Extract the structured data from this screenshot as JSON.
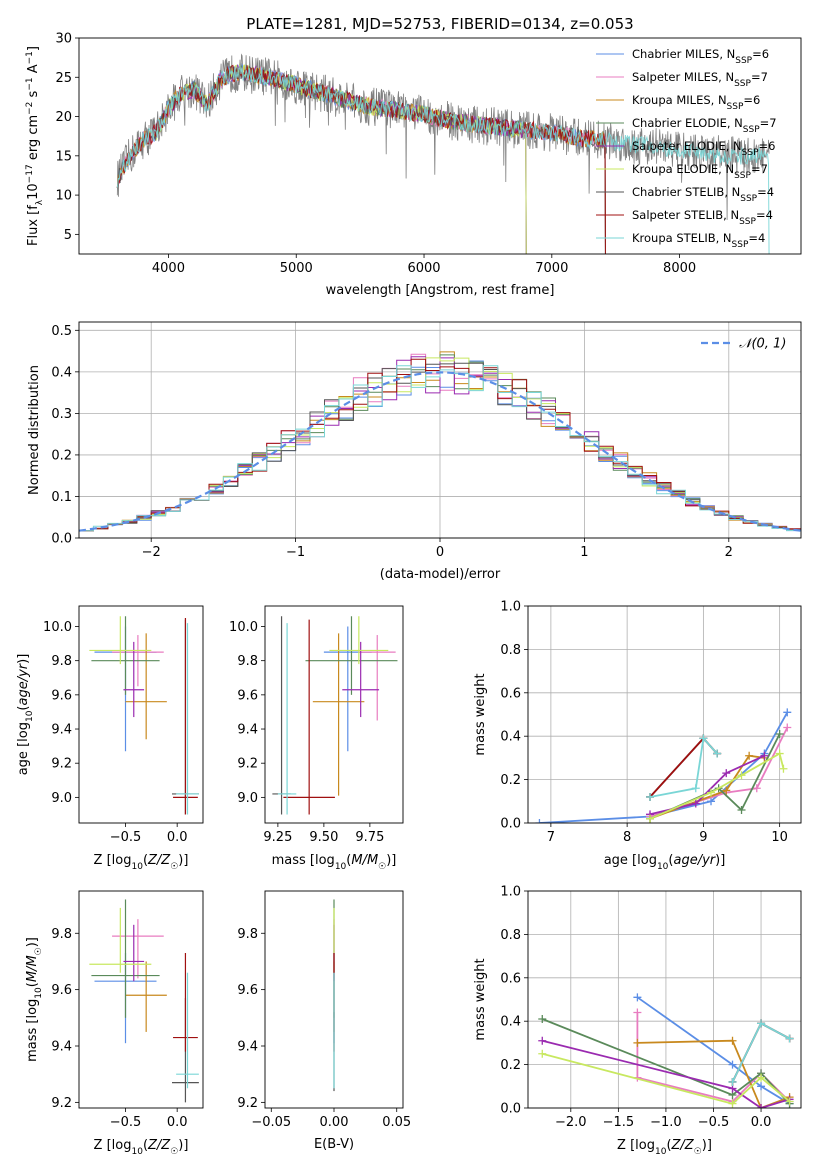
{
  "figure": {
    "title": "PLATE=1281, MJD=52753, FIBERID=0134, z=0.053"
  },
  "colors": {
    "Chabrier MILES": "#5b8ee6",
    "Salpeter MILES": "#e87cc0",
    "Kroupa MILES": "#c8891e",
    "Chabrier ELODIE": "#5a8a5a",
    "Salpeter ELODIE": "#9a2ab0",
    "Kroupa ELODIE": "#c8e860",
    "Chabrier STELIB": "#555555",
    "Salpeter STELIB": "#a01010",
    "Kroupa STELIB": "#7ad6d6",
    "data": "#808080",
    "orange": "#f07d1e",
    "normal": "#5b8ee6",
    "grid": "#b0b0b0"
  },
  "chart_data": [
    {
      "id": "spectrum",
      "type": "line",
      "xlabel": "wavelength [Angstrom, rest frame]",
      "ylabel": "Flux [f_λ10^-17 erg cm^-2 s^-1 A^-1]",
      "xlim": [
        3300,
        8950
      ],
      "ylim": [
        2.5,
        30
      ],
      "xticks": [
        4000,
        5000,
        6000,
        7000,
        8000
      ],
      "yticks": [
        5,
        10,
        15,
        20,
        25,
        30
      ],
      "grid": false,
      "legend_position": "top-right",
      "continuum": {
        "x": [
          3600,
          3700,
          3800,
          3900,
          4000,
          4100,
          4200,
          4300,
          4400,
          4500,
          4600,
          4800,
          5000,
          5200,
          5400,
          5600,
          5800,
          6000,
          6200,
          6400,
          6600,
          6800,
          7000,
          7200,
          7400,
          7600,
          7800,
          8000,
          8200,
          8400
        ],
        "y": [
          12,
          15,
          17,
          18,
          21,
          23,
          23.5,
          21.5,
          24.5,
          25.5,
          25.5,
          25,
          24,
          23,
          22,
          21.2,
          20.8,
          20.3,
          19.5,
          19,
          18.6,
          18.3,
          18,
          17.3,
          17,
          16.5,
          16.2,
          15.8,
          15.3,
          15
        ]
      },
      "series": [
        {
          "name": "Chabrier MILES",
          "nssp": "6",
          "xmin": 3600,
          "xmax": 7420
        },
        {
          "name": "Salpeter MILES",
          "nssp": "7",
          "xmin": 3600,
          "xmax": 7420
        },
        {
          "name": "Kroupa MILES",
          "nssp": "6",
          "xmin": 3600,
          "xmax": 7420
        },
        {
          "name": "Chabrier ELODIE",
          "nssp": "7",
          "xmin": 3900,
          "xmax": 6800
        },
        {
          "name": "Salpeter ELODIE",
          "nssp": "6",
          "xmin": 3900,
          "xmax": 6800
        },
        {
          "name": "Kroupa ELODIE",
          "nssp": "7",
          "xmin": 3900,
          "xmax": 6800
        },
        {
          "name": "Chabrier STELIB",
          "nssp": "4",
          "xmin": 3600,
          "xmax": 7420
        },
        {
          "name": "Salpeter STELIB",
          "nssp": "4",
          "xmin": 3600,
          "xmax": 7420
        },
        {
          "name": "Kroupa STELIB",
          "nssp": "4",
          "xmin": 3600,
          "xmax": 8700
        }
      ]
    },
    {
      "id": "residuals",
      "type": "histogram",
      "xlabel": "(data-model)/error",
      "ylabel": "Normed distribution",
      "xlim": [
        -2.5,
        2.5
      ],
      "ylim": [
        0,
        0.52
      ],
      "xticks": [
        -2,
        -1,
        0,
        1,
        2
      ],
      "yticks": [
        0.0,
        0.1,
        0.2,
        0.3,
        0.4,
        0.5
      ],
      "grid": true,
      "legend_position": "top-right",
      "legend_label": "𝒩(0, 1)",
      "bin_width": 0.1
    },
    {
      "id": "age-vs-Z",
      "type": "errorbar",
      "xlabel": "Z [log10(Z/Z☉)]",
      "ylabel": "age  [log10(age/yr)]",
      "xlim": [
        -0.95,
        0.25
      ],
      "ylim": [
        8.85,
        10.12
      ],
      "xticks": [
        -0.5,
        0.0
      ],
      "yticks": [
        9.0,
        9.2,
        9.4,
        9.6,
        9.8,
        10.0
      ],
      "grid": false,
      "points": [
        {
          "series": "Chabrier MILES",
          "x": -0.5,
          "y": 9.85,
          "xerr": 0.3,
          "yerr": [
            0.58,
            0.15
          ]
        },
        {
          "series": "Salpeter MILES",
          "x": -0.38,
          "y": 9.85,
          "xerr": 0.25,
          "yerr": [
            0.2,
            0.1
          ]
        },
        {
          "series": "Kroupa MILES",
          "x": -0.3,
          "y": 9.56,
          "xerr": 0.2,
          "yerr": [
            0.22,
            0.4
          ]
        },
        {
          "series": "Chabrier ELODIE",
          "x": -0.5,
          "y": 9.8,
          "xerr": 0.33,
          "yerr": [
            0.2,
            0.26
          ]
        },
        {
          "series": "Salpeter ELODIE",
          "x": -0.42,
          "y": 9.63,
          "xerr": 0.1,
          "yerr": [
            0.16,
            0.28
          ]
        },
        {
          "series": "Kroupa ELODIE",
          "x": -0.55,
          "y": 9.86,
          "xerr": 0.3,
          "yerr": [
            0.08,
            0.2
          ]
        },
        {
          "series": "Chabrier STELIB",
          "x": 0.08,
          "y": 9.02,
          "xerr": 0.13,
          "yerr": [
            0.12,
            1.02
          ]
        },
        {
          "series": "Salpeter STELIB",
          "x": 0.08,
          "y": 9.0,
          "xerr": 0.12,
          "yerr": [
            0.1,
            1.05
          ]
        },
        {
          "series": "Kroupa STELIB",
          "x": 0.1,
          "y": 9.02,
          "xerr": 0.11,
          "yerr": [
            0.12,
            1.0
          ]
        }
      ]
    },
    {
      "id": "age-vs-mass",
      "type": "errorbar",
      "xlabel": "mass [log10(M/M☉)]",
      "ylabel": "",
      "xlim": [
        9.18,
        9.93
      ],
      "ylim": [
        8.85,
        10.12
      ],
      "xticks": [
        9.25,
        9.5,
        9.75
      ],
      "yticks": [
        9.0,
        9.2,
        9.4,
        9.6,
        9.8,
        10.0
      ],
      "grid": false,
      "points": [
        {
          "series": "Chabrier MILES",
          "x": 9.63,
          "y": 9.85,
          "xerr": 0.13,
          "yerr": [
            0.58,
            0.15
          ]
        },
        {
          "series": "Salpeter MILES",
          "x": 9.79,
          "y": 9.85,
          "xerr": 0.1,
          "yerr": [
            0.4,
            0.1
          ]
        },
        {
          "series": "Kroupa MILES",
          "x": 9.58,
          "y": 9.56,
          "xerr": 0.14,
          "yerr": [
            0.55,
            0.4
          ]
        },
        {
          "series": "Chabrier ELODIE",
          "x": 9.65,
          "y": 9.8,
          "xerr": 0.25,
          "yerr": [
            0.2,
            0.26
          ]
        },
        {
          "series": "Salpeter ELODIE",
          "x": 9.7,
          "y": 9.63,
          "xerr": 0.1,
          "yerr": [
            0.16,
            0.28
          ]
        },
        {
          "series": "Kroupa ELODIE",
          "x": 9.69,
          "y": 9.86,
          "xerr": 0.16,
          "yerr": [
            0.08,
            0.2
          ]
        },
        {
          "series": "Chabrier STELIB",
          "x": 9.27,
          "y": 9.02,
          "xerr": 0.05,
          "yerr": [
            0.12,
            1.04
          ]
        },
        {
          "series": "Salpeter STELIB",
          "x": 9.42,
          "y": 9.0,
          "xerr": 0.14,
          "yerr": [
            0.1,
            1.04
          ]
        },
        {
          "series": "Kroupa STELIB",
          "x": 9.3,
          "y": 9.02,
          "xerr": 0.05,
          "yerr": [
            0.12,
            1.0
          ]
        }
      ]
    },
    {
      "id": "weight-vs-age",
      "type": "line",
      "xlabel": "age  [log10(age/yr)]",
      "ylabel": "mass weight",
      "xlim": [
        6.7,
        10.28
      ],
      "ylim": [
        0,
        1.0
      ],
      "xticks": [
        7,
        8,
        9,
        10
      ],
      "yticks": [
        0.0,
        0.2,
        0.4,
        0.6,
        0.8,
        1.0
      ],
      "grid": true,
      "series": [
        {
          "name": "Chabrier MILES",
          "x": [
            6.85,
            8.3,
            9.1,
            9.8,
            10.1
          ],
          "y": [
            0.0,
            0.03,
            0.1,
            0.32,
            0.51
          ]
        },
        {
          "name": "Salpeter MILES",
          "x": [
            8.3,
            9.3,
            9.7,
            10.1
          ],
          "y": [
            0.03,
            0.14,
            0.16,
            0.44
          ]
        },
        {
          "name": "Kroupa MILES",
          "x": [
            8.3,
            9.3,
            9.6,
            9.8
          ],
          "y": [
            0.02,
            0.15,
            0.31,
            0.3
          ]
        },
        {
          "name": "Chabrier ELODIE",
          "x": [
            8.3,
            9.2,
            9.5,
            10.0
          ],
          "y": [
            0.02,
            0.16,
            0.06,
            0.41
          ]
        },
        {
          "name": "Salpeter ELODIE",
          "x": [
            8.3,
            8.9,
            9.3,
            9.8
          ],
          "y": [
            0.04,
            0.09,
            0.23,
            0.31
          ]
        },
        {
          "name": "Kroupa ELODIE",
          "x": [
            8.3,
            9.1,
            9.5,
            10.0,
            10.05
          ],
          "y": [
            0.02,
            0.14,
            0.22,
            0.32,
            0.25
          ]
        },
        {
          "name": "Chabrier STELIB",
          "x": [
            8.3,
            9.0,
            9.18
          ],
          "y": [
            0.12,
            0.39,
            0.32
          ]
        },
        {
          "name": "Salpeter STELIB",
          "x": [
            8.3,
            9.0,
            9.18
          ],
          "y": [
            0.12,
            0.39,
            0.32
          ]
        },
        {
          "name": "Kroupa STELIB",
          "x": [
            8.3,
            8.9,
            9.0,
            9.18
          ],
          "y": [
            0.12,
            0.16,
            0.39,
            0.32
          ]
        }
      ]
    },
    {
      "id": "mass-vs-Z",
      "type": "errorbar",
      "xlabel": "Z [log10(Z/Z☉)]",
      "ylabel": "mass [log10(M/M☉)]",
      "xlim": [
        -0.95,
        0.25
      ],
      "ylim": [
        9.18,
        9.95
      ],
      "xticks": [
        -0.5,
        0.0
      ],
      "yticks": [
        9.2,
        9.4,
        9.6,
        9.8
      ],
      "grid": false,
      "points": [
        {
          "series": "Chabrier MILES",
          "x": -0.5,
          "y": 9.63,
          "xerr": 0.3,
          "yerr": [
            0.22,
            0.1
          ]
        },
        {
          "series": "Salpeter MILES",
          "x": -0.38,
          "y": 9.79,
          "xerr": 0.25,
          "yerr": [
            0.15,
            0.06
          ]
        },
        {
          "series": "Kroupa MILES",
          "x": -0.3,
          "y": 9.58,
          "xerr": 0.2,
          "yerr": [
            0.13,
            0.12
          ]
        },
        {
          "series": "Chabrier ELODIE",
          "x": -0.5,
          "y": 9.65,
          "xerr": 0.33,
          "yerr": [
            0.15,
            0.27
          ]
        },
        {
          "series": "Salpeter ELODIE",
          "x": -0.42,
          "y": 9.7,
          "xerr": 0.1,
          "yerr": [
            0.07,
            0.13
          ]
        },
        {
          "series": "Kroupa ELODIE",
          "x": -0.55,
          "y": 9.69,
          "xerr": 0.3,
          "yerr": [
            0.03,
            0.2
          ]
        },
        {
          "series": "Chabrier STELIB",
          "x": 0.08,
          "y": 9.27,
          "xerr": 0.13,
          "yerr": [
            0.07,
            0.3
          ]
        },
        {
          "series": "Salpeter STELIB",
          "x": 0.08,
          "y": 9.43,
          "xerr": 0.12,
          "yerr": [
            0.05,
            0.3
          ]
        },
        {
          "series": "Kroupa STELIB",
          "x": 0.1,
          "y": 9.3,
          "xerr": 0.11,
          "yerr": [
            0.05,
            0.36
          ]
        }
      ]
    },
    {
      "id": "mass-vs-EBV",
      "type": "errorbar",
      "xlabel": "E(B-V)",
      "ylabel": "",
      "xlim": [
        -0.055,
        0.055
      ],
      "ylim": [
        9.18,
        9.95
      ],
      "xticks": [
        -0.05,
        0.0,
        0.05
      ],
      "yticks": [
        9.2,
        9.4,
        9.6,
        9.8
      ],
      "grid": false,
      "points": [
        {
          "series": "Chabrier MILES",
          "x": 0.0,
          "y": 9.63,
          "xerr": 0,
          "yerr": [
            0.22,
            0.1
          ]
        },
        {
          "series": "Salpeter MILES",
          "x": 0.0,
          "y": 9.79,
          "xerr": 0,
          "yerr": [
            0.15,
            0.06
          ]
        },
        {
          "series": "Kroupa MILES",
          "x": 0.0,
          "y": 9.58,
          "xerr": 0,
          "yerr": [
            0.13,
            0.12
          ]
        },
        {
          "series": "Chabrier ELODIE",
          "x": 0.0,
          "y": 9.65,
          "xerr": 0,
          "yerr": [
            0.15,
            0.27
          ]
        },
        {
          "series": "Salpeter ELODIE",
          "x": 0.0,
          "y": 9.7,
          "xerr": 0,
          "yerr": [
            0.07,
            0.13
          ]
        },
        {
          "series": "Kroupa ELODIE",
          "x": 0.0,
          "y": 9.69,
          "xerr": 0,
          "yerr": [
            0.03,
            0.2
          ]
        },
        {
          "series": "Chabrier STELIB",
          "x": 0.0,
          "y": 9.27,
          "xerr": 0,
          "yerr": [
            0.03,
            0.25
          ]
        },
        {
          "series": "Salpeter STELIB",
          "x": 0.0,
          "y": 9.43,
          "xerr": 0,
          "yerr": [
            0.05,
            0.3
          ]
        },
        {
          "series": "Kroupa STELIB",
          "x": 0.0,
          "y": 9.3,
          "xerr": 0,
          "yerr": [
            0.05,
            0.36
          ]
        }
      ]
    },
    {
      "id": "weight-vs-Z",
      "type": "line",
      "xlabel": "Z [log10(Z/Z☉)]",
      "ylabel": "mass weight",
      "xlim": [
        -2.45,
        0.42
      ],
      "ylim": [
        0,
        1.0
      ],
      "xticks": [
        -2.0,
        -1.5,
        -1.0,
        -0.5,
        0.0
      ],
      "yticks": [
        0.0,
        0.2,
        0.4,
        0.6,
        0.8,
        1.0
      ],
      "grid": true,
      "series": [
        {
          "name": "Chabrier MILES",
          "x": [
            -1.3,
            -0.3,
            0.0,
            0.3
          ],
          "y": [
            0.51,
            0.2,
            0.1,
            0.02
          ]
        },
        {
          "name": "Salpeter MILES",
          "x": [
            -1.3,
            -1.3,
            -0.3,
            0.0,
            0.3
          ],
          "y": [
            0.44,
            0.14,
            0.03,
            0.16,
            0.03
          ]
        },
        {
          "name": "Kroupa MILES",
          "x": [
            -1.3,
            -0.3,
            0.0,
            0.3
          ],
          "y": [
            0.3,
            0.31,
            0.0,
            0.05
          ]
        },
        {
          "name": "Chabrier ELODIE",
          "x": [
            -2.3,
            -0.3,
            0.0,
            0.3
          ],
          "y": [
            0.41,
            0.06,
            0.16,
            0.02
          ]
        },
        {
          "name": "Salpeter ELODIE",
          "x": [
            -2.3,
            -0.3,
            0.0,
            0.3
          ],
          "y": [
            0.31,
            0.09,
            0.0,
            0.04
          ]
        },
        {
          "name": "Kroupa ELODIE",
          "x": [
            -2.3,
            -0.3,
            0.0,
            0.3
          ],
          "y": [
            0.25,
            0.02,
            0.14,
            0.03
          ]
        },
        {
          "name": "Chabrier STELIB",
          "x": [
            -0.3,
            0.0,
            0.3
          ],
          "y": [
            0.12,
            0.39,
            0.32
          ]
        },
        {
          "name": "Salpeter STELIB",
          "x": [
            -0.3,
            0.0,
            0.3
          ],
          "y": [
            0.12,
            0.39,
            0.32
          ]
        },
        {
          "name": "Kroupa STELIB",
          "x": [
            -0.3,
            0.0,
            0.3
          ],
          "y": [
            0.12,
            0.39,
            0.32
          ]
        }
      ]
    }
  ]
}
